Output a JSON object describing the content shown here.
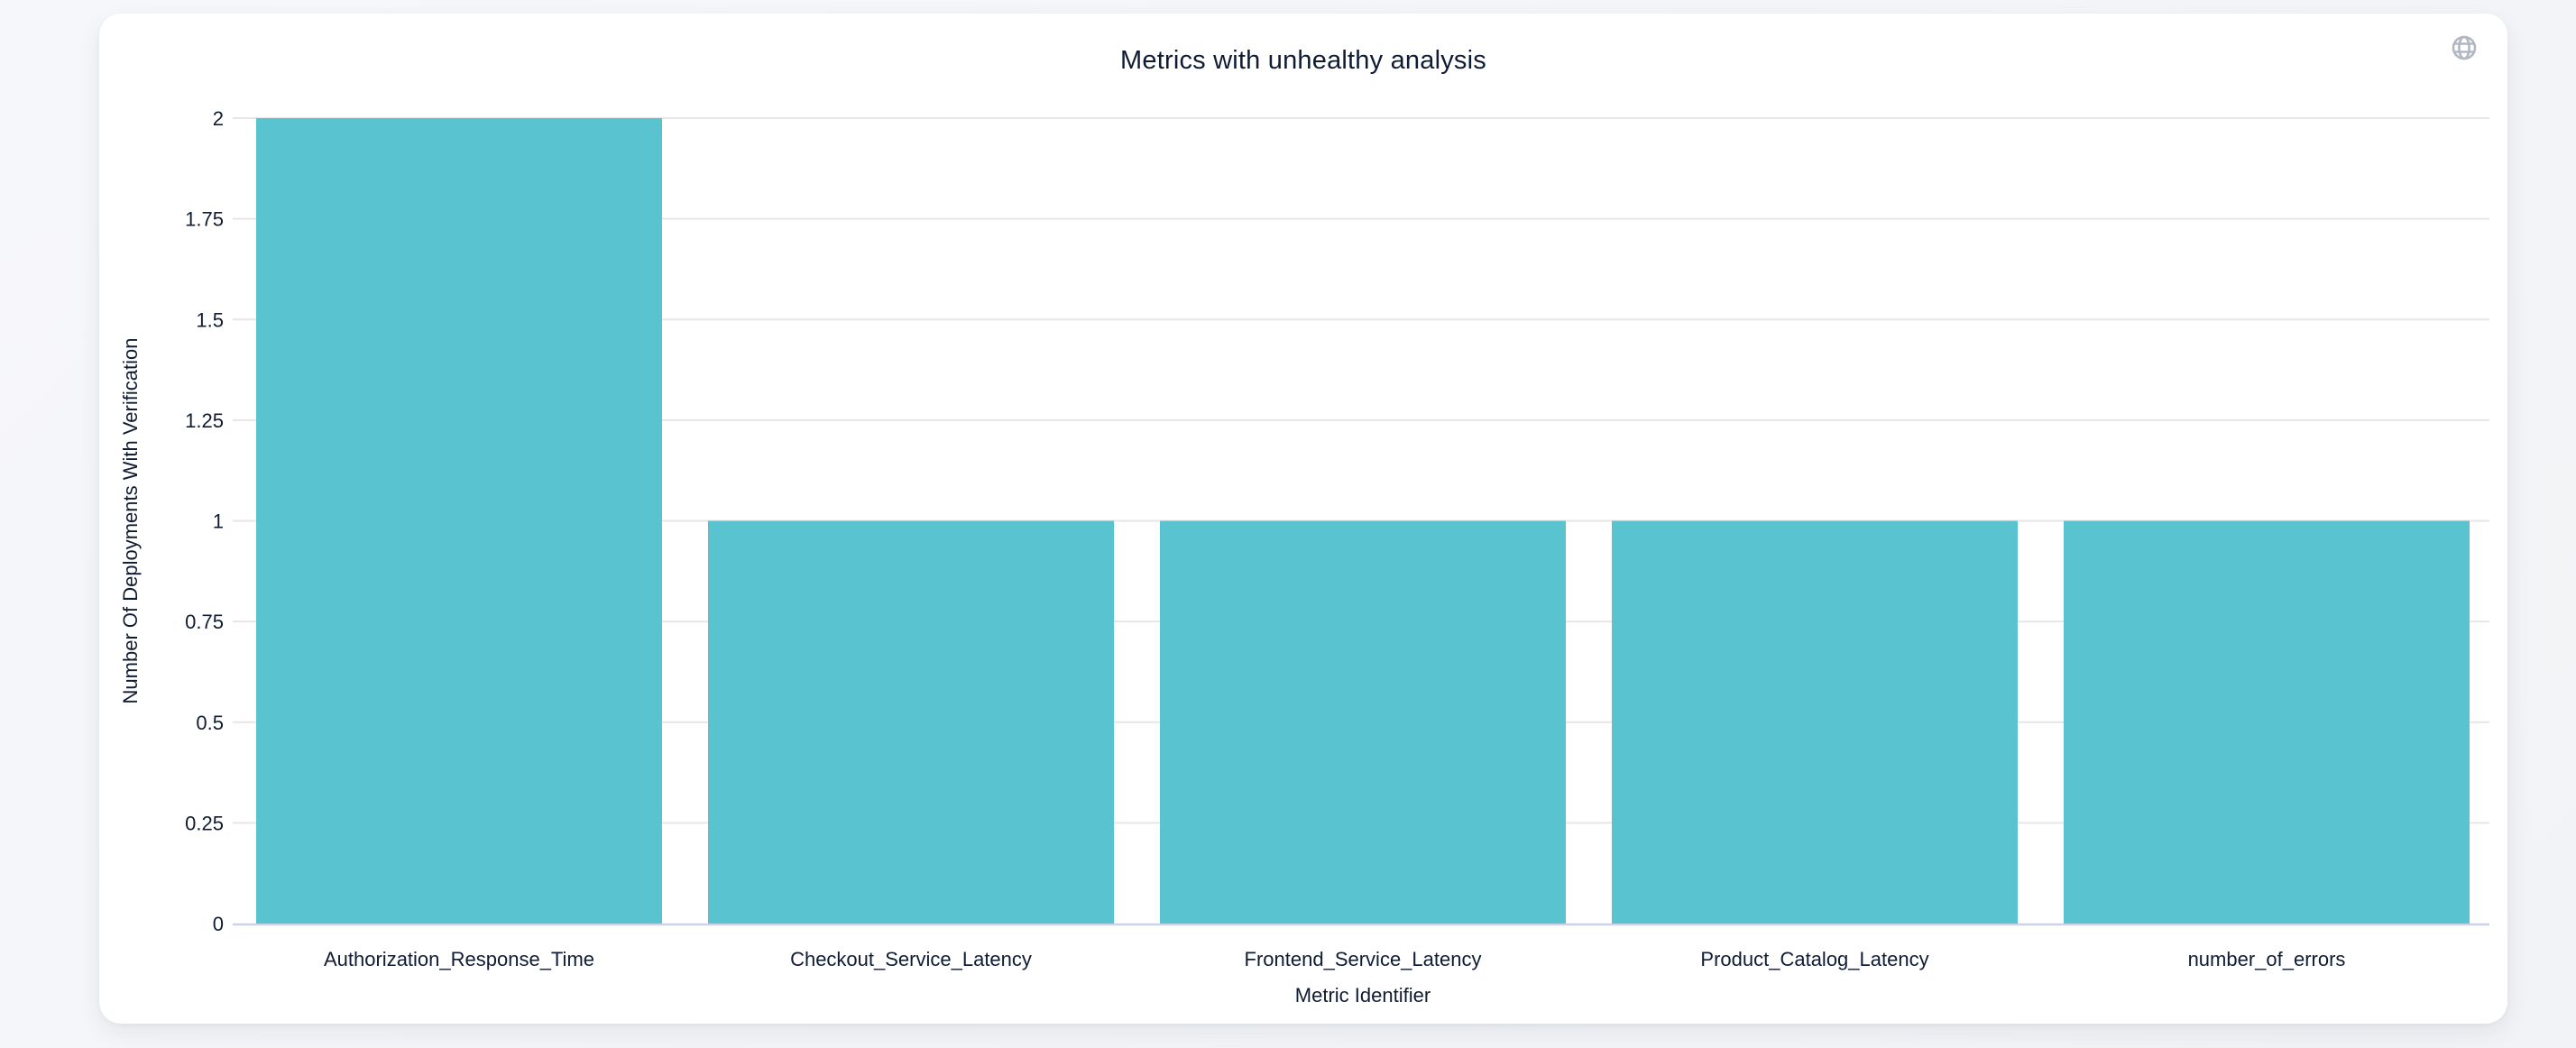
{
  "page": {
    "background_color": "#f2f4f7"
  },
  "card": {
    "background_color": "#ffffff",
    "globe_icon_color": "#b1b7c3"
  },
  "chart_data": {
    "type": "bar",
    "title": "Metrics with unhealthy analysis",
    "xlabel": "Metric Identifier",
    "ylabel": "Number Of Deployments With Verification",
    "categories": [
      "Authorization_Response_Time",
      "Checkout_Service_Latency",
      "Frontend_Service_Latency",
      "Product_Catalog_Latency",
      "number_of_errors"
    ],
    "values": [
      2,
      1,
      1,
      1,
      1
    ],
    "ylim": [
      0,
      2
    ],
    "yticks": [
      "0",
      "0.25",
      "0.5",
      "0.75",
      "1",
      "1.25",
      "1.5",
      "1.75",
      "2"
    ],
    "grid": true,
    "legend_position": "none",
    "bar_color": "#59c3cf",
    "grid_color": "#e6e6e6",
    "axis_line_color": "#ccd4e6",
    "text_color": "#101c33"
  }
}
